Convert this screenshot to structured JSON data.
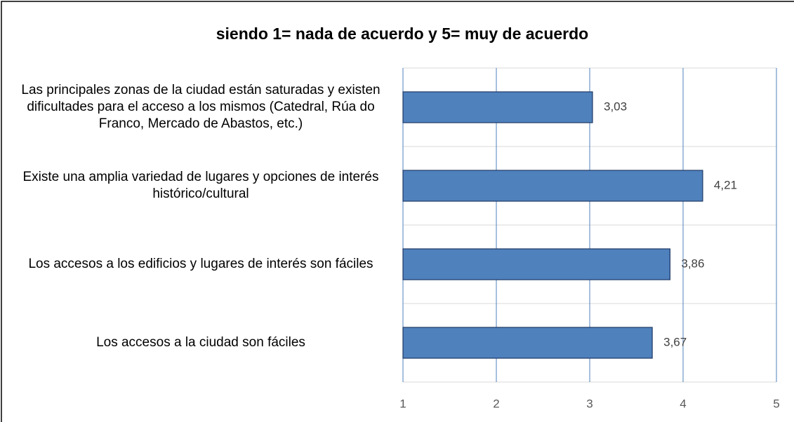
{
  "chart_data": {
    "type": "bar",
    "orientation": "horizontal",
    "title": "siendo 1= nada de acuerdo y 5= muy de acuerdo",
    "categories": [
      "Las principales zonas de la ciudad están saturadas y existen dificultades para el acceso a los mismos (Catedral, Rúa do Franco, Mercado de Abastos, etc.)",
      "Existe una amplia variedad de lugares y opciones de interés histórico/cultural",
      "Los accesos a los edificios y lugares de interés son fáciles",
      "Los accesos a la ciudad son fáciles"
    ],
    "values": [
      3.03,
      4.21,
      3.86,
      3.67
    ],
    "value_labels": [
      "3,03",
      "4,21",
      "3,86",
      "3,67"
    ],
    "color": "#4f81bd",
    "xlim": [
      1,
      5
    ],
    "xticks": [
      1,
      2,
      3,
      4,
      5
    ],
    "grid": true
  }
}
